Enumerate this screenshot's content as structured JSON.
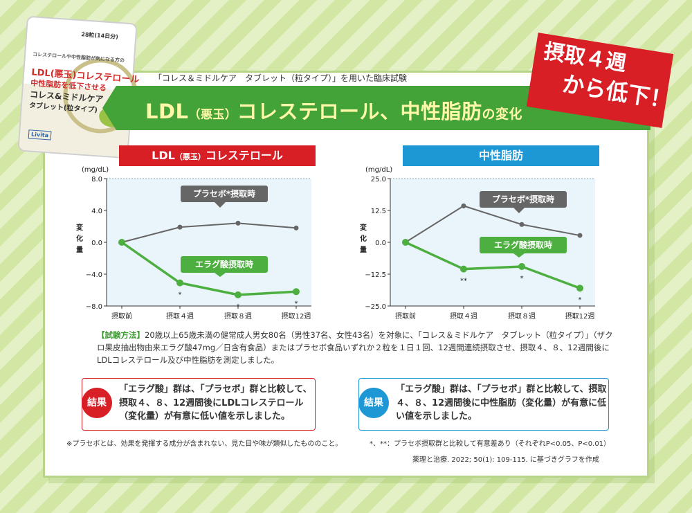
{
  "header": {
    "test_caption": "「コレス＆ミドルケア　タブレット（粒タイプ）」を用いた臨床試験",
    "title_main": "LDL",
    "title_paren": "（悪玉）",
    "title_rest": "コレステロール、中性脂肪",
    "title_tail": "の変化"
  },
  "banner": {
    "line1": "摂取４週",
    "line2": "から低下！"
  },
  "package": {
    "count": "28粒(14日分)",
    "subtitle": "コレステロールや中性脂肪が気になる方の",
    "line1": "LDL(悪玉)コレステロール",
    "line2": "中性脂肪を低下させる",
    "line3": "コレス&ミドルケア",
    "line4": "タブレット(粒タイプ)",
    "logo": "Livita"
  },
  "colors": {
    "ldl": "#d81f26",
    "tg": "#1e98d5",
    "ellagic": "#4caf3f",
    "placebo": "#666666",
    "plot_bg": "#eaf4fb"
  },
  "chart_data": [
    {
      "type": "line",
      "id": "ldl",
      "title_main": "LDL",
      "title_paren": "（悪玉）",
      "title_rest": "コレステロール",
      "unit": "(mg/dL)",
      "ylabel": "変化量",
      "categories": [
        "摂取前",
        "摂取４週",
        "摂取８週",
        "摂取12週"
      ],
      "yticks": [
        "8.0",
        "4.0",
        "0.0",
        "−4.0",
        "−8.0"
      ],
      "ylim": [
        -8.0,
        8.0
      ],
      "series": [
        {
          "name": "プラセボ*摂取時",
          "color": "#666666",
          "values": [
            0,
            1.9,
            2.4,
            1.8
          ]
        },
        {
          "name": "エラグ酸摂取時",
          "color": "#4caf3f",
          "values": [
            0,
            -5.1,
            -6.6,
            -6.2
          ],
          "significance": [
            "",
            "*",
            "*",
            "*"
          ]
        }
      ]
    },
    {
      "type": "line",
      "id": "tg",
      "title": "中性脂肪",
      "unit": "(mg/dL)",
      "ylabel": "変化量",
      "categories": [
        "摂取前",
        "摂取４週",
        "摂取８週",
        "摂取12週"
      ],
      "yticks": [
        "25.0",
        "12.5",
        "0.0",
        "−12.5",
        "−25.0"
      ],
      "ylim": [
        -25.0,
        25.0
      ],
      "series": [
        {
          "name": "プラセボ*摂取時",
          "color": "#666666",
          "values": [
            0,
            14.3,
            7.0,
            2.7
          ]
        },
        {
          "name": "エラグ酸摂取時",
          "color": "#4caf3f",
          "values": [
            0,
            -10.5,
            -9.5,
            -18.0
          ],
          "significance": [
            "",
            "**",
            "*",
            "*"
          ]
        }
      ]
    }
  ],
  "method": {
    "head": "【試験方法】",
    "body": "20歳以上65歳未満の健常成人男女80名（男性37名、女性43名）を対象に、「コレス＆ミドルケア　タブレット（粒タイプ）」（ザクロ果皮抽出物由来エラグ酸47mg／日含有食品）またはプラセボ食品いずれか２粒を１日１回、12週間連続摂取させ、摂取４、８、12週間後にLDLコレステロール及び中性脂肪を測定しました。"
  },
  "results": {
    "badge": "結果",
    "ldl_text": "「エラグ酸」群は、「プラセボ」群と比較して、摂取４、８、12週間後にLDLコレステロール（変化量）が有意に低い値を示しました。",
    "tg_text": "「エラグ酸」群は、「プラセボ」群と比較して、摂取４、８、12週間後に中性脂肪（変化量）が有意に低い値を示しました。"
  },
  "footer": {
    "placebo_note": "※プラセボとは、効果を発揮する成分が含まれない、見た目や味が類似したもののこと。",
    "sig_note": "*、**：プラセボ摂取群と比較して有意差あり（それぞれP<0.05、P<0.01）",
    "source": "薬理と治療. 2022; 50(1): 109-115. に基づきグラフを作成"
  }
}
